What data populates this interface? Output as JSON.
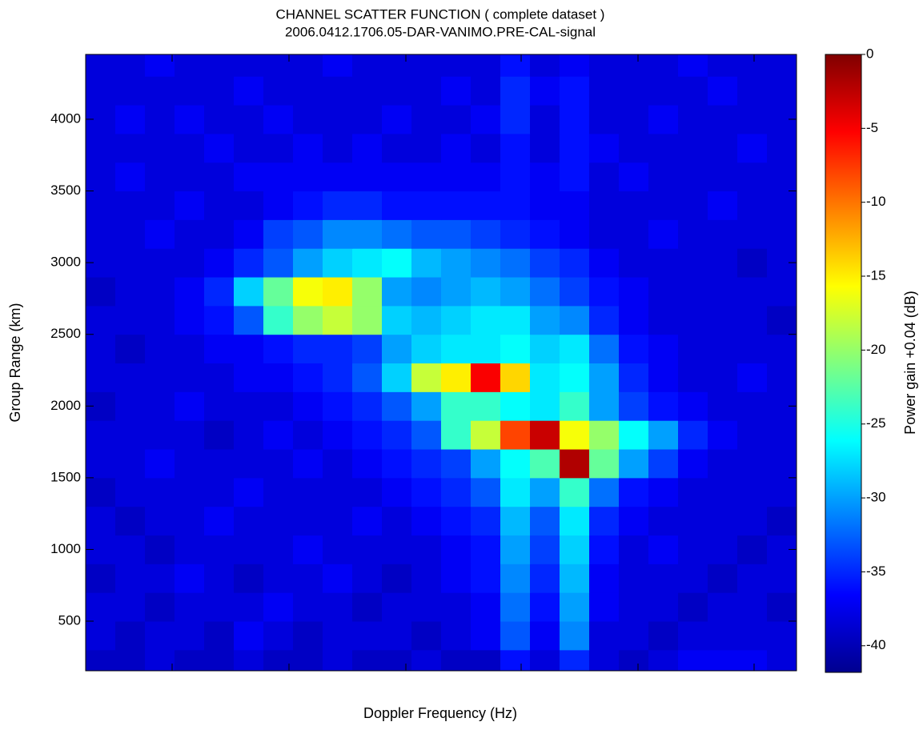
{
  "chart_data": {
    "type": "heatmap",
    "title": "CHANNEL SCATTER FUNCTION  ( complete dataset )",
    "subtitle": "2006.0412.1706.05-DAR-VANIMO.PRE-CAL-signal",
    "x_label": "Doppler Frequency (Hz)",
    "y_label": "Group Range (km)",
    "colorbar_label": "Power gain +0.04 (dB)",
    "categories": [
      null,
      null,
      null,
      null,
      null,
      null,
      null,
      null,
      null,
      null,
      null,
      null,
      null,
      null,
      null,
      null,
      null,
      null,
      null,
      null,
      null,
      null,
      null,
      null
    ],
    "ybins": [
      154,
      300,
      500,
      700,
      900,
      1100,
      1300,
      1500,
      1700,
      1900,
      2100,
      2300,
      2500,
      2700,
      2900,
      3100,
      3300,
      3500,
      3700,
      3900,
      4100,
      4300,
      4452
    ],
    "ylim": [
      154,
      4452
    ],
    "yticks": [
      500,
      1000,
      1500,
      2000,
      2500,
      3000,
      3500,
      4000
    ],
    "clim": [
      -41.8,
      0
    ],
    "cticks": [
      0,
      -5,
      -10,
      -15,
      -20,
      -25,
      -30,
      -35,
      -40
    ],
    "colormap": "jet",
    "z": [
      [
        -39,
        -39,
        -38,
        -39,
        -39,
        -38,
        -39,
        -39,
        -38,
        -39,
        -39,
        -38,
        -39,
        -39,
        -36,
        -38,
        -35,
        -38,
        -39,
        -38,
        -37,
        -37,
        -37,
        -38
      ],
      [
        -38,
        -39,
        -38,
        -38,
        -39,
        -37,
        -38,
        -39,
        -38,
        -38,
        -38,
        -39,
        -38,
        -37,
        -33,
        -37,
        -31,
        -38,
        -38,
        -39,
        -38,
        -38,
        -38,
        -38
      ],
      [
        -38,
        -38,
        -39,
        -38,
        -38,
        -38,
        -37,
        -38,
        -38,
        -39,
        -38,
        -38,
        -38,
        -37,
        -32,
        -36,
        -30,
        -37,
        -38,
        -38,
        -39,
        -38,
        -38,
        -39
      ],
      [
        -39,
        -38,
        -38,
        -37,
        -38,
        -39,
        -38,
        -38,
        -37,
        -38,
        -39,
        -38,
        -37,
        -36,
        -31,
        -35,
        -29,
        -37,
        -38,
        -38,
        -38,
        -39,
        -38,
        -38
      ],
      [
        -38,
        -38,
        -39,
        -38,
        -38,
        -38,
        -38,
        -37,
        -38,
        -38,
        -38,
        -38,
        -37,
        -36,
        -30,
        -34,
        -28,
        -36,
        -38,
        -37,
        -38,
        -38,
        -39,
        -38
      ],
      [
        -38,
        -39,
        -38,
        -38,
        -37,
        -38,
        -38,
        -38,
        -38,
        -37,
        -38,
        -37,
        -36,
        -35,
        -29,
        -33,
        -27,
        -35,
        -37,
        -38,
        -38,
        -38,
        -38,
        -39
      ],
      [
        -39,
        -38,
        -38,
        -38,
        -38,
        -37,
        -38,
        -38,
        -38,
        -38,
        -37,
        -36,
        -35,
        -33,
        -27,
        -30,
        -24,
        -32,
        -36,
        -37,
        -38,
        -38,
        -38,
        -38
      ],
      [
        -38,
        -38,
        -37,
        -38,
        -38,
        -38,
        -38,
        -37,
        -38,
        -37,
        -36,
        -35,
        -34,
        -30,
        -26,
        -23,
        -2,
        -22,
        -30,
        -34,
        -37,
        -38,
        -38,
        -38
      ],
      [
        -38,
        -38,
        -38,
        -38,
        -39,
        -38,
        -37,
        -38,
        -37,
        -36,
        -35,
        -33,
        -24,
        -18,
        -8,
        -3,
        -16,
        -20,
        -26,
        -30,
        -35,
        -37,
        -38,
        -38
      ],
      [
        -39,
        -38,
        -38,
        -37,
        -38,
        -38,
        -38,
        -37,
        -36,
        -35,
        -33,
        -30,
        -24,
        -24,
        -26,
        -27,
        -24,
        -30,
        -34,
        -36,
        -37,
        -38,
        -38,
        -38
      ],
      [
        -38,
        -38,
        -38,
        -38,
        -38,
        -37,
        -37,
        -36,
        -35,
        -33,
        -28,
        -18,
        -15,
        -5,
        -14,
        -27,
        -26,
        -30,
        -35,
        -37,
        -38,
        -38,
        -37,
        -38
      ],
      [
        -38,
        -39,
        -38,
        -38,
        -37,
        -37,
        -36,
        -35,
        -35,
        -34,
        -30,
        -28,
        -27,
        -27,
        -26,
        -28,
        -27,
        -32,
        -36,
        -37,
        -38,
        -38,
        -38,
        -38
      ],
      [
        -38,
        -38,
        -38,
        -37,
        -36,
        -33,
        -24,
        -20,
        -18,
        -20,
        -28,
        -29,
        -28,
        -27,
        -27,
        -30,
        -31,
        -35,
        -37,
        -38,
        -38,
        -38,
        -38,
        -39
      ],
      [
        -39,
        -38,
        -38,
        -37,
        -35,
        -28,
        -22,
        -16,
        -15,
        -20,
        -30,
        -31,
        -30,
        -29,
        -30,
        -32,
        -34,
        -36,
        -37,
        -38,
        -38,
        -38,
        -38,
        -38
      ],
      [
        -38,
        -38,
        -38,
        -38,
        -37,
        -35,
        -33,
        -30,
        -28,
        -27,
        -26,
        -29,
        -30,
        -31,
        -32,
        -34,
        -35,
        -37,
        -38,
        -38,
        -38,
        -38,
        -39,
        -38
      ],
      [
        -38,
        -38,
        -37,
        -38,
        -38,
        -37,
        -34,
        -33,
        -31,
        -31,
        -32,
        -33,
        -33,
        -34,
        -35,
        -36,
        -37,
        -38,
        -38,
        -37,
        -38,
        -38,
        -38,
        -38
      ],
      [
        -38,
        -38,
        -38,
        -37,
        -38,
        -38,
        -37,
        -36,
        -35,
        -35,
        -36,
        -36,
        -36,
        -36,
        -36,
        -37,
        -37,
        -38,
        -38,
        -38,
        -38,
        -37,
        -38,
        -38
      ],
      [
        -38,
        -37,
        -38,
        -38,
        -38,
        -37,
        -37,
        -37,
        -37,
        -37,
        -37,
        -37,
        -37,
        -37,
        -36,
        -37,
        -36,
        -38,
        -37,
        -38,
        -38,
        -38,
        -38,
        -38
      ],
      [
        -38,
        -38,
        -38,
        -38,
        -37,
        -38,
        -38,
        -37,
        -38,
        -37,
        -38,
        -38,
        -37,
        -38,
        -36,
        -38,
        -36,
        -37,
        -38,
        -38,
        -38,
        -38,
        -37,
        -38
      ],
      [
        -38,
        -37,
        -38,
        -37,
        -38,
        -38,
        -37,
        -38,
        -38,
        -38,
        -37,
        -38,
        -38,
        -37,
        -35,
        -38,
        -36,
        -38,
        -38,
        -37,
        -38,
        -38,
        -38,
        -38
      ],
      [
        -38,
        -38,
        -38,
        -38,
        -38,
        -37,
        -38,
        -38,
        -38,
        -38,
        -38,
        -38,
        -37,
        -38,
        -35,
        -37,
        -36,
        -38,
        -38,
        -38,
        -38,
        -37,
        -38,
        -38
      ],
      [
        -38,
        -38,
        -37,
        -38,
        -38,
        -38,
        -38,
        -38,
        -37,
        -38,
        -38,
        -38,
        -38,
        -38,
        -36,
        -38,
        -37,
        -38,
        -38,
        -38,
        -37,
        -38,
        -38,
        -38
      ]
    ]
  }
}
